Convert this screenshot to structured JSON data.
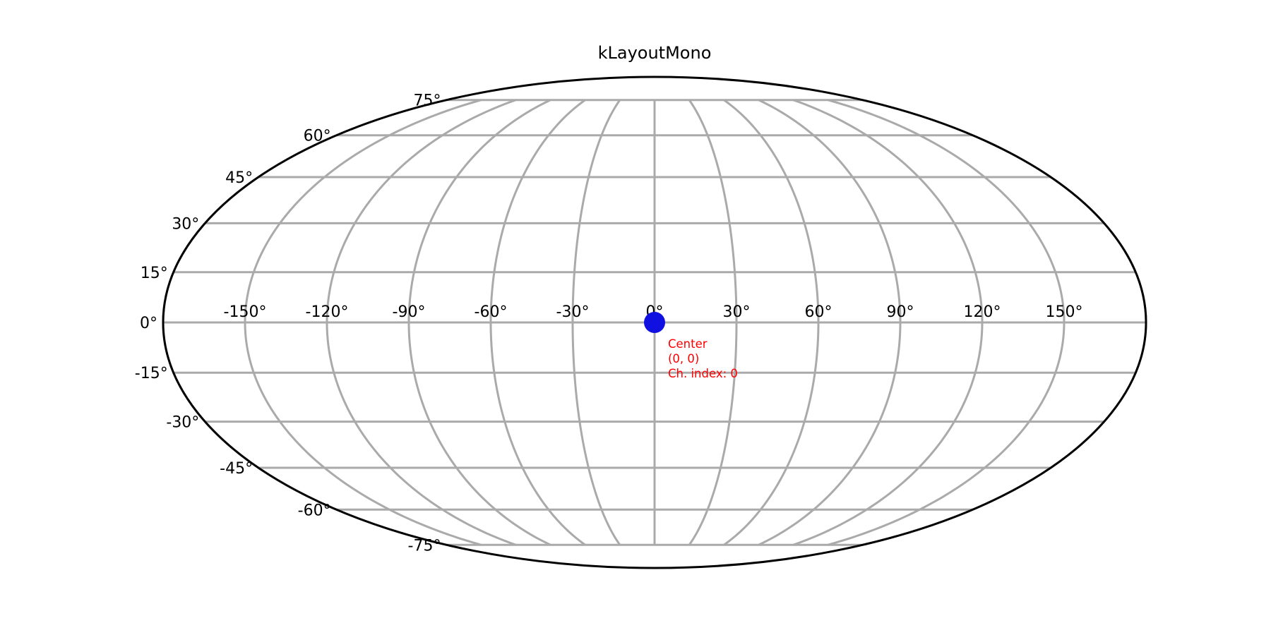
{
  "chart_data": {
    "type": "scatter",
    "projection": "mollweide",
    "title": "kLayoutMono",
    "grid": true,
    "grid_color": "#aaaaaa",
    "boundary_color": "#000000",
    "xticks": [
      -150,
      -120,
      -90,
      -60,
      -30,
      0,
      30,
      60,
      90,
      120,
      150
    ],
    "xtick_labels": [
      "-150°",
      "-120°",
      "-90°",
      "-60°",
      "-30°",
      "0°",
      "30°",
      "60°",
      "90°",
      "120°",
      "150°"
    ],
    "yticks": [
      75,
      60,
      45,
      30,
      15,
      0,
      -15,
      -30,
      -45,
      -60,
      -75
    ],
    "ytick_labels": [
      "75°",
      "60°",
      "45°",
      "30°",
      "15°",
      "0°",
      "-15°",
      "-30°",
      "-45°",
      "-60°",
      "-75°"
    ],
    "points": [
      {
        "lon": 0,
        "lat": 0,
        "color": "#1010e0",
        "annotation": [
          "Center",
          "(0, 0)",
          "Ch. index: 0"
        ],
        "annotation_color": "#ff0000"
      }
    ]
  }
}
